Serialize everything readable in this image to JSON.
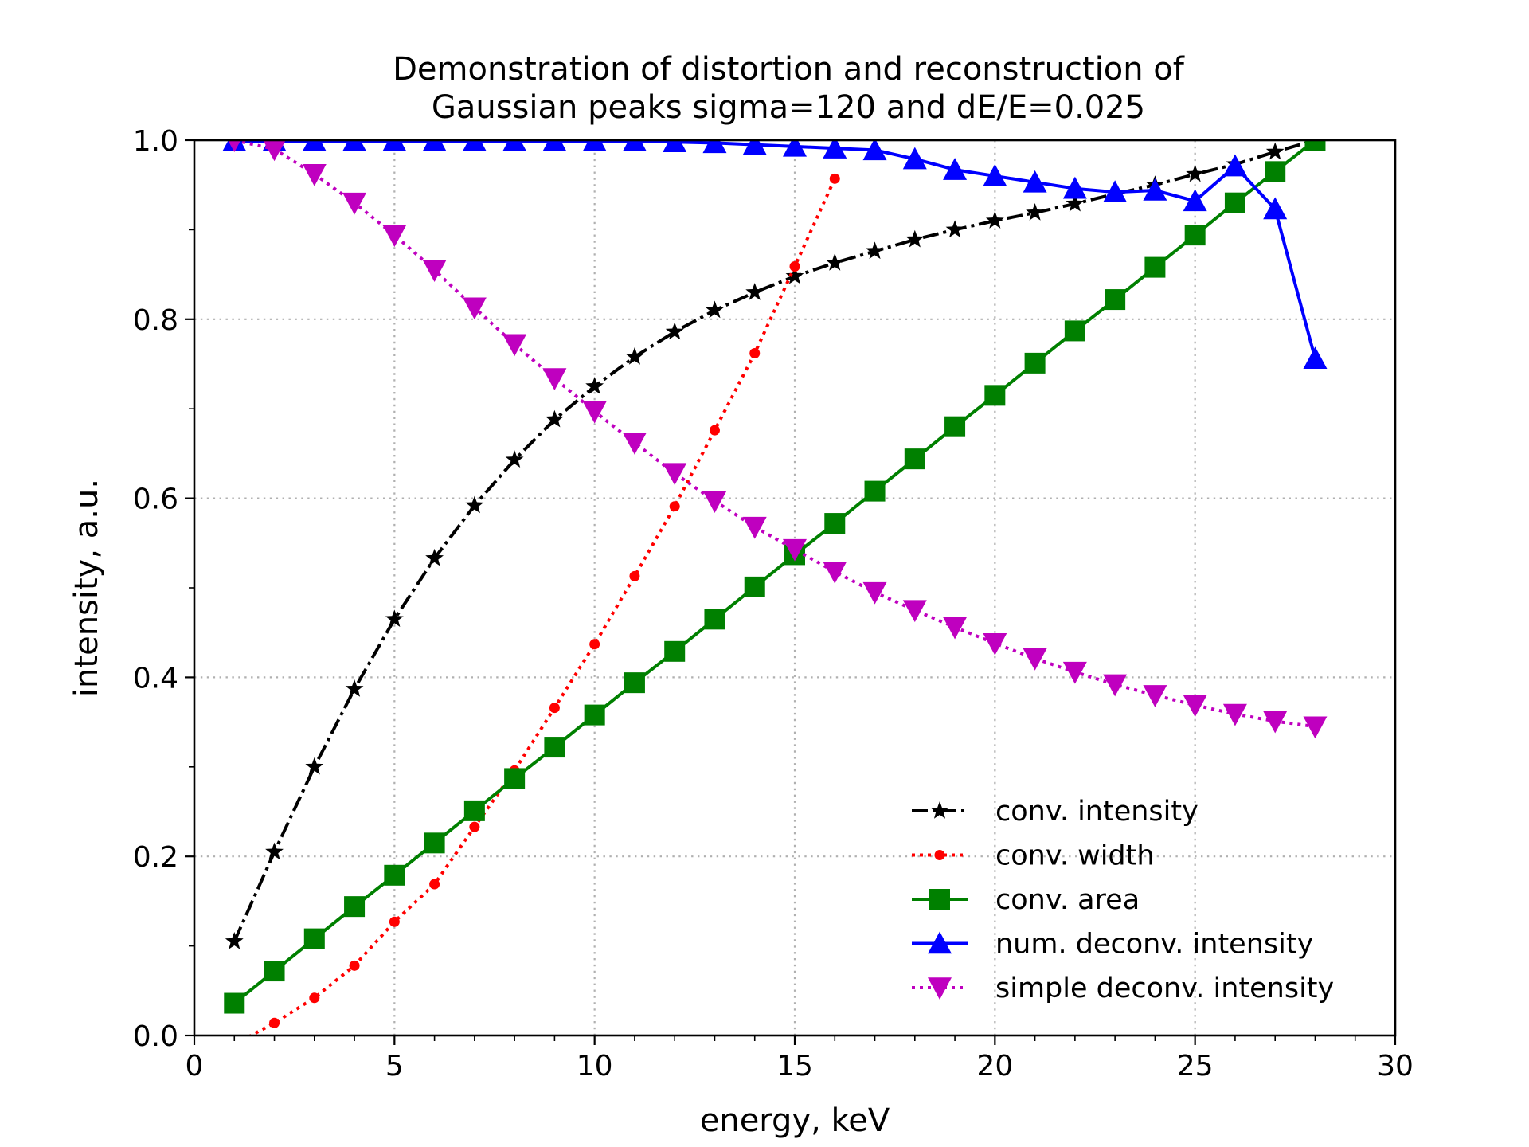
{
  "chart_data": {
    "type": "line",
    "title": [
      "Demonstration of  distortion and reconstruction of",
      "Gaussian peaks sigma=120 and dE/E=0.025"
    ],
    "xlabel": "energy, keV",
    "ylabel": "intensity, a.u.",
    "xlim": [
      0,
      30
    ],
    "ylim": [
      0,
      1.0
    ],
    "xticks": [
      0,
      5,
      10,
      15,
      20,
      25,
      30
    ],
    "xtick_labels": [
      "0",
      "5",
      "10",
      "15",
      "20",
      "25",
      "30"
    ],
    "yticks": [
      0.0,
      0.2,
      0.4,
      0.6,
      0.8,
      1.0
    ],
    "ytick_labels": [
      "0.0",
      "0.2",
      "0.4",
      "0.6",
      "0.8",
      "1.0"
    ],
    "x_minor_step": 1,
    "y_minor_step": 0.1,
    "grid": true,
    "legend_position": "lower right",
    "series": [
      {
        "name": "conv. intensity",
        "color": "#000000",
        "line_style": "dashdot",
        "marker": "star",
        "x": [
          1,
          2,
          3,
          4,
          5,
          6,
          7,
          8,
          9,
          10,
          11,
          12,
          13,
          14,
          15,
          16,
          17,
          18,
          19,
          20,
          21,
          22,
          23,
          24,
          25,
          26,
          27,
          28
        ],
        "values": [
          0.105,
          0.205,
          0.3,
          0.387,
          0.465,
          0.533,
          0.592,
          0.643,
          0.688,
          0.725,
          0.758,
          0.786,
          0.81,
          0.83,
          0.848,
          0.863,
          0.876,
          0.889,
          0.9,
          0.91,
          0.919,
          0.929,
          0.94,
          0.95,
          0.962,
          0.973,
          0.987,
          1.0
        ]
      },
      {
        "name": "conv. width",
        "color": "#ff0000",
        "line_style": "dotted",
        "marker": "circle",
        "x": [
          1,
          2,
          3,
          4,
          5,
          6,
          7,
          8,
          9,
          10,
          11,
          12,
          13,
          14,
          15,
          16
        ],
        "values": [
          -0.01,
          0.014,
          0.042,
          0.078,
          0.127,
          0.169,
          0.233,
          0.296,
          0.366,
          0.437,
          0.513,
          0.591,
          0.676,
          0.762,
          0.859,
          0.957
        ]
      },
      {
        "name": "conv. area",
        "color": "#008000",
        "line_style": "solid",
        "marker": "square",
        "x": [
          1,
          2,
          3,
          4,
          5,
          6,
          7,
          8,
          9,
          10,
          11,
          12,
          13,
          14,
          15,
          16,
          17,
          18,
          19,
          20,
          21,
          22,
          23,
          24,
          25,
          26,
          27,
          28
        ],
        "values": [
          0.036,
          0.072,
          0.108,
          0.144,
          0.179,
          0.215,
          0.251,
          0.287,
          0.322,
          0.358,
          0.394,
          0.429,
          0.465,
          0.501,
          0.537,
          0.572,
          0.608,
          0.644,
          0.68,
          0.715,
          0.751,
          0.787,
          0.822,
          0.858,
          0.894,
          0.93,
          0.965,
          1.0
        ]
      },
      {
        "name": "num. deconv. intensity",
        "color": "#0000ff",
        "line_style": "solid",
        "marker": "triangle-up",
        "x": [
          1,
          2,
          3,
          4,
          5,
          6,
          7,
          8,
          9,
          10,
          11,
          12,
          13,
          14,
          15,
          16,
          17,
          18,
          19,
          20,
          21,
          22,
          23,
          24,
          25,
          26,
          27,
          28
        ],
        "values": [
          0.999,
          0.999,
          0.999,
          0.999,
          0.999,
          0.999,
          0.999,
          0.999,
          0.999,
          0.999,
          0.999,
          0.998,
          0.997,
          0.995,
          0.993,
          0.991,
          0.989,
          0.979,
          0.967,
          0.96,
          0.953,
          0.946,
          0.942,
          0.944,
          0.932,
          0.971,
          0.923,
          0.756
        ]
      },
      {
        "name": "simple deconv. intensity",
        "color": "#bf00bf",
        "line_style": "dotted",
        "marker": "triangle-down",
        "x": [
          1,
          2,
          3,
          4,
          5,
          6,
          7,
          8,
          9,
          10,
          11,
          12,
          13,
          14,
          15,
          16,
          17,
          18,
          19,
          20,
          21,
          22,
          23,
          24,
          25,
          26,
          27,
          28
        ],
        "values": [
          1.0,
          0.99,
          0.962,
          0.93,
          0.894,
          0.855,
          0.813,
          0.772,
          0.734,
          0.697,
          0.662,
          0.628,
          0.597,
          0.568,
          0.543,
          0.518,
          0.495,
          0.475,
          0.456,
          0.438,
          0.421,
          0.406,
          0.392,
          0.38,
          0.369,
          0.359,
          0.351,
          0.345
        ]
      }
    ]
  }
}
